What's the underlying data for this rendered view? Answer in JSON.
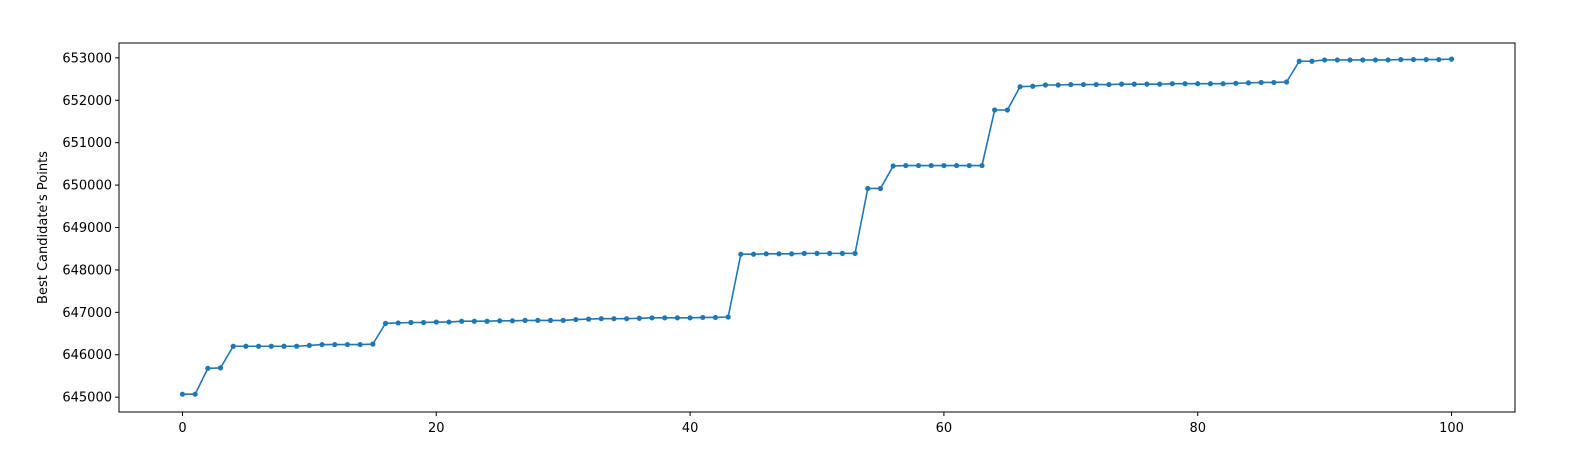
{
  "chart_data": {
    "type": "line",
    "title": "",
    "xlabel": "",
    "ylabel": "Best Candidate's Points",
    "xlim": [
      -5,
      105
    ],
    "ylim": [
      644650,
      653350
    ],
    "xticks": [
      0,
      20,
      40,
      60,
      80,
      100
    ],
    "yticks": [
      645000,
      646000,
      647000,
      648000,
      649000,
      650000,
      651000,
      652000,
      653000
    ],
    "grid": false,
    "legend": "none",
    "series": [
      {
        "color": "#1f77b4",
        "marker": "circle",
        "x": [
          0,
          1,
          2,
          3,
          4,
          5,
          6,
          7,
          8,
          9,
          10,
          11,
          12,
          13,
          14,
          15,
          16,
          17,
          18,
          19,
          20,
          21,
          22,
          23,
          24,
          25,
          26,
          27,
          28,
          29,
          30,
          31,
          32,
          33,
          34,
          35,
          36,
          37,
          38,
          39,
          40,
          41,
          42,
          43,
          44,
          45,
          46,
          47,
          48,
          49,
          50,
          51,
          52,
          53,
          54,
          55,
          56,
          57,
          58,
          59,
          60,
          61,
          62,
          63,
          64,
          65,
          66,
          67,
          68,
          69,
          70,
          71,
          72,
          73,
          74,
          75,
          76,
          77,
          78,
          79,
          80,
          81,
          82,
          83,
          84,
          85,
          86,
          87,
          88,
          89,
          90,
          91,
          92,
          93,
          94,
          95,
          96,
          97,
          98,
          99,
          100
        ],
        "y": [
          645070,
          645070,
          645680,
          645690,
          646200,
          646200,
          646200,
          646200,
          646200,
          646200,
          646220,
          646240,
          646240,
          646240,
          646240,
          646250,
          646740,
          646750,
          646760,
          646760,
          646770,
          646770,
          646790,
          646790,
          646790,
          646800,
          646800,
          646810,
          646810,
          646810,
          646810,
          646830,
          646840,
          646850,
          646850,
          646850,
          646860,
          646870,
          646870,
          646870,
          646870,
          646880,
          646880,
          646890,
          648370,
          648370,
          648380,
          648380,
          648380,
          648390,
          648390,
          648390,
          648390,
          648390,
          649920,
          649920,
          650450,
          650460,
          650460,
          650460,
          650460,
          650460,
          650460,
          650460,
          651770,
          651770,
          652320,
          652330,
          652360,
          652360,
          652370,
          652370,
          652370,
          652370,
          652380,
          652380,
          652380,
          652380,
          652390,
          652390,
          652390,
          652390,
          652390,
          652400,
          652410,
          652420,
          652420,
          652430,
          652920,
          652920,
          652950,
          652950,
          652950,
          652950,
          652950,
          652950,
          652960,
          652960,
          652960,
          652960,
          652970
        ]
      }
    ]
  }
}
